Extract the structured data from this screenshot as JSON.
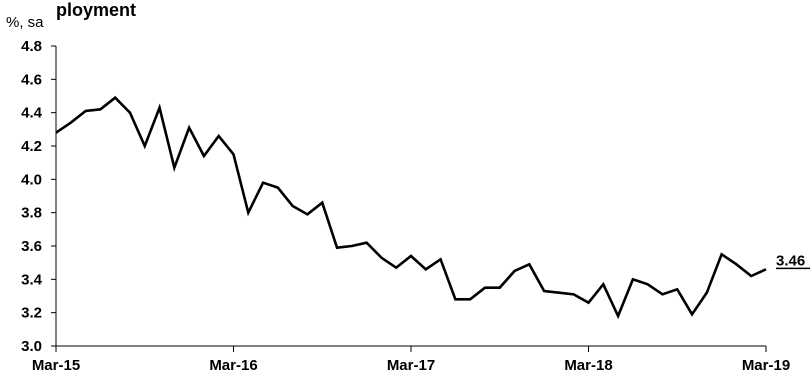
{
  "chart_data": {
    "type": "line",
    "title": "",
    "title_fragment": "ployment",
    "ylabel": "%, sa",
    "xlabel": "",
    "ylim": [
      3.0,
      4.8
    ],
    "yticks": [
      "3.0",
      "3.2",
      "3.4",
      "3.6",
      "3.8",
      "4.0",
      "4.2",
      "4.4",
      "4.6",
      "4.8"
    ],
    "xticks": [
      "Mar-15",
      "Mar-16",
      "Mar-17",
      "Mar-18",
      "Mar-19"
    ],
    "grid": false,
    "legend": "none",
    "line_color": "#000000",
    "end_label": "3.46",
    "series": [
      {
        "values": [
          4.28,
          4.34,
          4.41,
          4.42,
          4.49,
          4.4,
          4.2,
          4.43,
          4.07,
          4.31,
          4.14,
          4.26,
          4.15,
          3.8,
          3.98,
          3.95,
          3.84,
          3.79,
          3.86,
          3.59,
          3.6,
          3.62,
          3.53,
          3.47,
          3.54,
          3.46,
          3.52,
          3.28,
          3.28,
          3.35,
          3.35,
          3.45,
          3.49,
          3.33,
          3.32,
          3.31,
          3.26,
          3.37,
          3.18,
          3.4,
          3.37,
          3.31,
          3.34,
          3.19,
          3.32,
          3.55,
          3.49,
          3.42,
          3.46
        ]
      }
    ]
  }
}
